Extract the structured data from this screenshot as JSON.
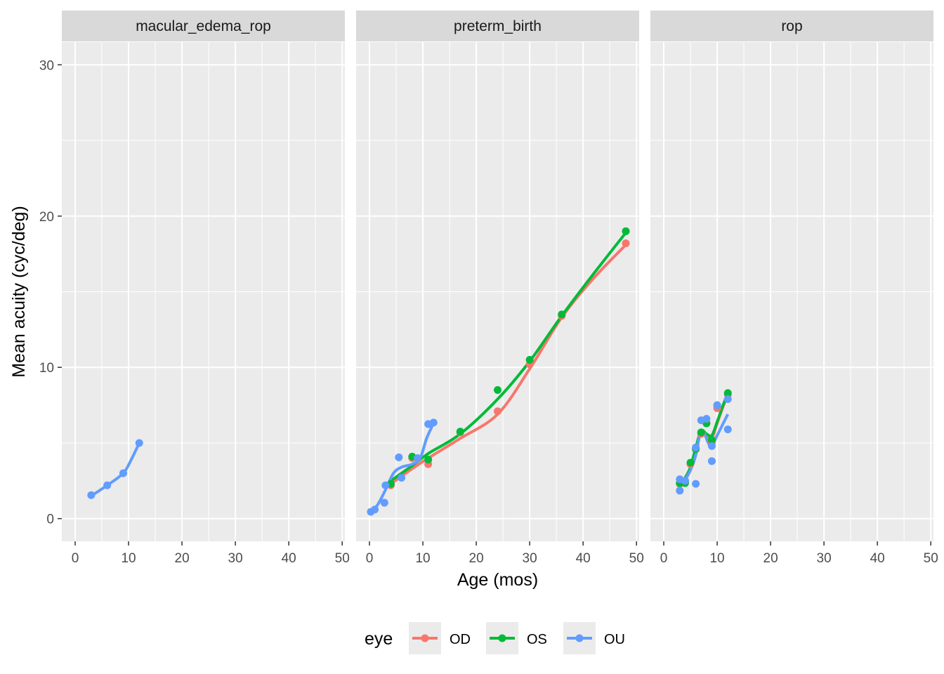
{
  "chart_data": {
    "type": "line",
    "xlabel": "Age (mos)",
    "ylabel": "Mean acuity (cyc/deg)",
    "xlim": [
      -2.5,
      50.5
    ],
    "ylim": [
      -1.5,
      31.5
    ],
    "x_ticks": [
      0,
      10,
      20,
      30,
      40,
      50
    ],
    "y_ticks": [
      0,
      10,
      20,
      30
    ],
    "grid": true,
    "legend": {
      "title": "eye",
      "position": "bottom",
      "items": [
        {
          "key": "OD",
          "label": "OD",
          "color": "#F8766D"
        },
        {
          "key": "OS",
          "label": "OS",
          "color": "#00BA38"
        },
        {
          "key": "OU",
          "label": "OU",
          "color": "#619CFF"
        }
      ]
    },
    "panels": [
      {
        "title": "macular_edema_rop",
        "series": [
          {
            "eye": "OU",
            "points": [
              [
                3,
                1.55
              ],
              [
                6,
                2.2
              ],
              [
                9,
                3.0
              ],
              [
                12,
                5.0
              ]
            ],
            "smooth": [
              [
                3,
                1.5
              ],
              [
                6,
                2.2
              ],
              [
                9,
                3.0
              ],
              [
                10.5,
                3.9
              ],
              [
                12,
                5.0
              ]
            ]
          }
        ]
      },
      {
        "title": "preterm_birth",
        "series": [
          {
            "eye": "OD",
            "points": [
              [
                4,
                2.2
              ],
              [
                8,
                4.0
              ],
              [
                11,
                3.6
              ],
              [
                17,
                5.7
              ],
              [
                24,
                7.1
              ],
              [
                30,
                10.2
              ],
              [
                36,
                13.4
              ],
              [
                48,
                18.2
              ]
            ],
            "smooth": [
              [
                4,
                2.3
              ],
              [
                8,
                3.3
              ],
              [
                11,
                4.0
              ],
              [
                17,
                5.3
              ],
              [
                24,
                6.9
              ],
              [
                30,
                9.9
              ],
              [
                36,
                13.3
              ],
              [
                42,
                15.9
              ],
              [
                48,
                18.1
              ]
            ]
          },
          {
            "eye": "OS",
            "points": [
              [
                4,
                2.3
              ],
              [
                8,
                4.1
              ],
              [
                11,
                3.9
              ],
              [
                17,
                5.75
              ],
              [
                24,
                8.5
              ],
              [
                30,
                10.5
              ],
              [
                36,
                13.5
              ],
              [
                48,
                19.0
              ]
            ],
            "smooth": [
              [
                4,
                2.5
              ],
              [
                8,
                3.5
              ],
              [
                11,
                4.3
              ],
              [
                17,
                5.6
              ],
              [
                24,
                7.9
              ],
              [
                30,
                10.4
              ],
              [
                36,
                13.4
              ],
              [
                42,
                16.2
              ],
              [
                48,
                18.9
              ]
            ]
          },
          {
            "eye": "OU",
            "points": [
              [
                0.25,
                0.45
              ],
              [
                1,
                0.6
              ],
              [
                2.8,
                1.05
              ],
              [
                3,
                2.2
              ],
              [
                5.5,
                4.05
              ],
              [
                6,
                2.7
              ],
              [
                9,
                4.0
              ],
              [
                11,
                6.25
              ],
              [
                12,
                6.35
              ]
            ],
            "smooth": [
              [
                0.25,
                0.45
              ],
              [
                1.5,
                0.9
              ],
              [
                3,
                1.9
              ],
              [
                4.5,
                3.0
              ],
              [
                6,
                3.4
              ],
              [
                8,
                3.6
              ],
              [
                9.5,
                4.0
              ],
              [
                10.7,
                5.3
              ],
              [
                12,
                6.3
              ]
            ]
          }
        ]
      },
      {
        "title": "rop",
        "series": [
          {
            "eye": "OD",
            "points": [
              [
                3,
                2.3
              ],
              [
                4,
                2.5
              ],
              [
                5,
                3.6
              ],
              [
                6,
                4.6
              ],
              [
                7,
                5.6
              ],
              [
                8,
                6.3
              ],
              [
                9,
                5.0
              ],
              [
                10,
                7.3
              ],
              [
                12,
                8.2
              ]
            ],
            "smooth": [
              [
                3,
                2.2
              ],
              [
                4,
                2.6
              ],
              [
                5,
                3.3
              ],
              [
                6,
                4.6
              ],
              [
                7,
                5.7
              ],
              [
                8,
                5.5
              ],
              [
                9,
                5.3
              ],
              [
                10,
                6.3
              ],
              [
                11,
                7.3
              ],
              [
                12,
                8.2
              ]
            ]
          },
          {
            "eye": "OS",
            "points": [
              [
                3,
                2.35
              ],
              [
                4,
                2.35
              ],
              [
                5,
                3.7
              ],
              [
                6,
                4.6
              ],
              [
                7,
                5.7
              ],
              [
                8,
                6.3
              ],
              [
                9,
                5.2
              ],
              [
                10,
                7.5
              ],
              [
                12,
                8.3
              ]
            ],
            "smooth": [
              [
                3,
                2.3
              ],
              [
                4,
                2.7
              ],
              [
                5,
                3.4
              ],
              [
                6,
                4.7
              ],
              [
                7,
                5.8
              ],
              [
                8,
                5.6
              ],
              [
                9,
                5.5
              ],
              [
                10,
                6.4
              ],
              [
                11,
                7.4
              ],
              [
                12,
                8.3
              ]
            ]
          },
          {
            "eye": "OU",
            "points": [
              [
                3,
                1.85
              ],
              [
                3,
                2.6
              ],
              [
                4,
                2.5
              ],
              [
                6,
                2.3
              ],
              [
                6,
                4.7
              ],
              [
                7,
                6.5
              ],
              [
                8,
                6.6
              ],
              [
                9,
                4.8
              ],
              [
                9,
                3.8
              ],
              [
                10,
                7.5
              ],
              [
                12,
                7.9
              ],
              [
                12,
                5.9
              ]
            ],
            "smooth": [
              [
                3,
                2.4
              ],
              [
                4,
                2.6
              ],
              [
                5,
                3.2
              ],
              [
                6,
                4.2
              ],
              [
                6.8,
                5.6
              ],
              [
                7.5,
                5.7
              ],
              [
                8.5,
                4.9
              ],
              [
                9.3,
                5.0
              ],
              [
                10,
                5.5
              ],
              [
                11,
                6.2
              ],
              [
                12,
                6.9
              ]
            ]
          }
        ]
      }
    ]
  }
}
